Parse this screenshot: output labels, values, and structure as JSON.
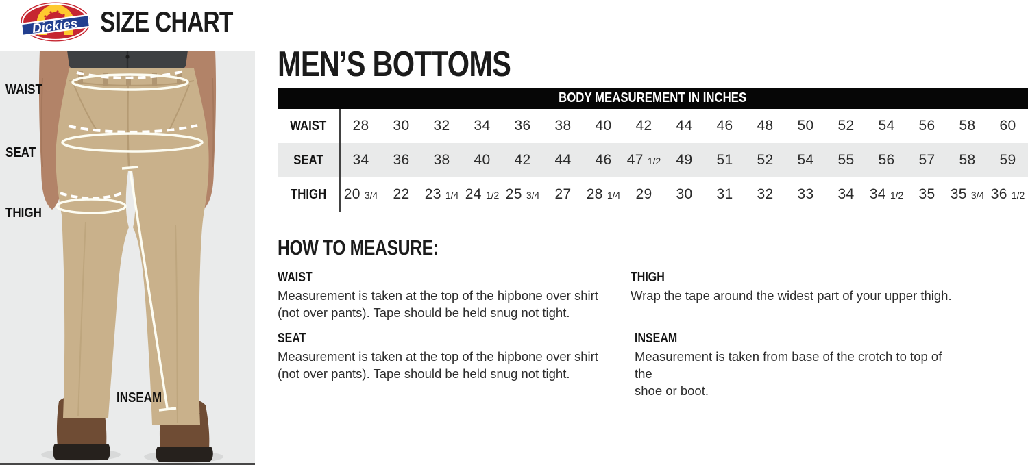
{
  "header": {
    "brand": "Dickies",
    "title": "SIZE CHART"
  },
  "main": {
    "title": "MEN’S BOTTOMS"
  },
  "figure": {
    "labels": {
      "waist": "WAIST",
      "seat": "SEAT",
      "thigh": "THIGH",
      "inseam": "INSEAM"
    }
  },
  "chart_data": {
    "type": "table",
    "title": "BODY MEASUREMENT IN INCHES",
    "rows": [
      {
        "label": "WAIST",
        "values": [
          "28",
          "30",
          "32",
          "34",
          "36",
          "38",
          "40",
          "42",
          "44",
          "46",
          "48",
          "50",
          "52",
          "54",
          "56",
          "58",
          "60"
        ]
      },
      {
        "label": "SEAT",
        "values": [
          "34",
          "36",
          "38",
          "40",
          "42",
          "44",
          "46",
          "47 1/2",
          "49",
          "51",
          "52",
          "54",
          "55",
          "56",
          "57",
          "58",
          "59"
        ]
      },
      {
        "label": "THIGH",
        "values": [
          "20 3/4",
          "22",
          "23 1/4",
          "24 1/2",
          "25 3/4",
          "27",
          "28 1/4",
          "29",
          "30",
          "31",
          "32",
          "33",
          "34",
          "34 1/2",
          "35",
          "35 3/4",
          "36 1/2"
        ]
      }
    ]
  },
  "size_table": {
    "header": "BODY MEASUREMENT IN INCHES"
  },
  "how_to_measure": {
    "title": "HOW TO MEASURE:",
    "sections": [
      {
        "label": "WAIST",
        "lines": [
          "Measurement is taken at the top of the hipbone over shirt",
          "(not over pants). Tape should be held snug not tight."
        ]
      },
      {
        "label": "THIGH",
        "lines": [
          "Wrap the tape around the widest part of your upper thigh."
        ]
      },
      {
        "label": "SEAT",
        "lines": [
          "Measurement is taken at the top of the hipbone over shirt",
          "(not over pants). Tape should be held snug not tight."
        ]
      },
      {
        "label": "INSEAM",
        "lines": [
          "Measurement is taken from base of the crotch to top of the",
          "shoe or boot."
        ]
      }
    ]
  },
  "colors": {
    "accent_black": "#060606",
    "row_alt_gray": "#e9eaea",
    "panel_gray": "#eaebeb",
    "khaki": "#c9b18b",
    "shirt_gray": "#3e4042",
    "skin": "#b28368",
    "boot_brown": "#6f4c34",
    "logo_red": "#c62631",
    "logo_yellow": "#fec92f",
    "logo_navy": "#223f8f"
  }
}
